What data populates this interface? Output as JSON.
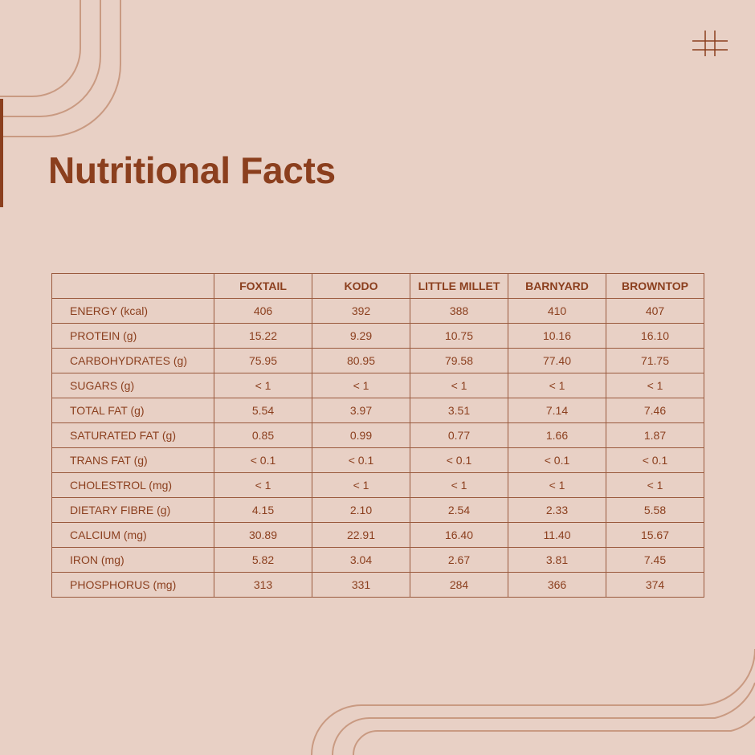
{
  "title": "Nutritional Facts",
  "colors": {
    "background": "#E8D0C5",
    "accent": "#8B3F1E",
    "text": "#8B3F1E",
    "border": "#9A5A3E",
    "deco_lines": "#C99A82"
  },
  "icons": {
    "corner_mark": "hash-icon"
  },
  "table": {
    "columns": [
      "",
      "FOXTAIL",
      "KODO",
      "LITTLE MILLET",
      "BARNYARD",
      "BROWNTOP"
    ],
    "rows": [
      {
        "label": "ENERGY (kcal)",
        "values": [
          "406",
          "392",
          "388",
          "410",
          "407"
        ]
      },
      {
        "label": "PROTEIN (g)",
        "values": [
          "15.22",
          "9.29",
          "10.75",
          "10.16",
          "16.10"
        ]
      },
      {
        "label": "CARBOHYDRATES (g)",
        "values": [
          "75.95",
          "80.95",
          "79.58",
          "77.40",
          "71.75"
        ]
      },
      {
        "label": "SUGARS (g)",
        "values": [
          "< 1",
          "< 1",
          "< 1",
          "< 1",
          "< 1"
        ]
      },
      {
        "label": "TOTAL FAT (g)",
        "values": [
          "5.54",
          "3.97",
          "3.51",
          "7.14",
          "7.46"
        ]
      },
      {
        "label": "SATURATED FAT (g)",
        "values": [
          "0.85",
          "0.99",
          "0.77",
          "1.66",
          "1.87"
        ]
      },
      {
        "label": "TRANS FAT (g)",
        "values": [
          "< 0.1",
          "< 0.1",
          "< 0.1",
          "< 0.1",
          "< 0.1"
        ]
      },
      {
        "label": "CHOLESTROL (mg)",
        "values": [
          "< 1",
          "< 1",
          "< 1",
          "< 1",
          "< 1"
        ]
      },
      {
        "label": "DIETARY FIBRE (g)",
        "values": [
          "4.15",
          "2.10",
          "2.54",
          "2.33",
          "5.58"
        ]
      },
      {
        "label": "CALCIUM (mg)",
        "values": [
          "30.89",
          "22.91",
          "16.40",
          "11.40",
          "15.67"
        ]
      },
      {
        "label": "IRON (mg)",
        "values": [
          "5.82",
          "3.04",
          "2.67",
          "3.81",
          "7.45"
        ]
      },
      {
        "label": "PHOSPHORUS (mg)",
        "values": [
          "313",
          "331",
          "284",
          "366",
          "374"
        ]
      }
    ]
  }
}
